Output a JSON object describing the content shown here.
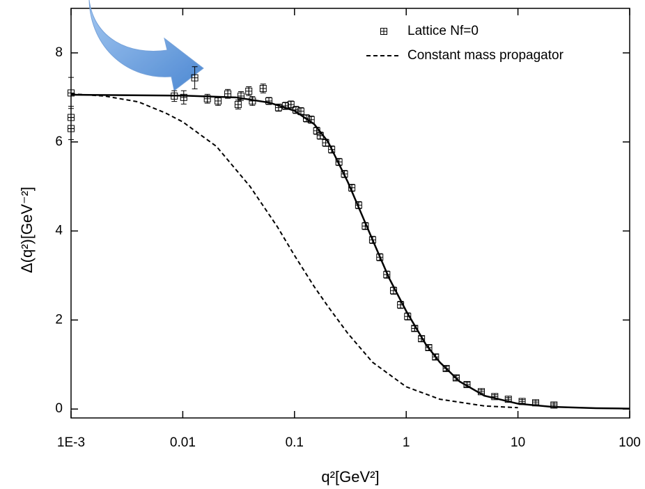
{
  "chart_data": {
    "type": "scatter",
    "x_label": "q²[GeV²]",
    "y_label": "Δ(q²)[GeV⁻²]",
    "x_scale": "log",
    "xlim": [
      0.001,
      100
    ],
    "xticks": [
      {
        "value": 0.001,
        "label": "1E-3"
      },
      0.01,
      0.1,
      1,
      10,
      100
    ],
    "ylim": [
      -0.2,
      9
    ],
    "yticks": [
      0,
      2,
      4,
      6,
      8
    ],
    "legend": "top-right",
    "series": [
      {
        "name": "Lattice Nf=0",
        "color": "#000000",
        "style": "markers",
        "x": [
          0.001,
          0.001,
          0.001,
          0.0084,
          0.0102,
          0.0128,
          0.0166,
          0.0207,
          0.0253,
          0.0313,
          0.0332,
          0.039,
          0.042,
          0.0524,
          0.059,
          0.072,
          0.083,
          0.093,
          0.103,
          0.114,
          0.128,
          0.141,
          0.158,
          0.17,
          0.19,
          0.215,
          0.25,
          0.28,
          0.326,
          0.375,
          0.43,
          0.5,
          0.58,
          0.67,
          0.77,
          0.89,
          1.03,
          1.19,
          1.37,
          1.59,
          1.83,
          2.28,
          2.8,
          3.5,
          4.7,
          6.2,
          8.2,
          10.9,
          14.4,
          21
        ],
        "values": [
          7.1,
          6.55,
          6.3,
          7.03,
          7.0,
          7.44,
          6.97,
          6.92,
          7.08,
          6.84,
          7.03,
          7.14,
          6.92,
          7.2,
          6.92,
          6.77,
          6.81,
          6.84,
          6.72,
          6.69,
          6.53,
          6.5,
          6.25,
          6.14,
          5.98,
          5.83,
          5.55,
          5.28,
          4.97,
          4.58,
          4.11,
          3.8,
          3.41,
          3.02,
          2.66,
          2.34,
          2.08,
          1.81,
          1.58,
          1.38,
          1.17,
          0.91,
          0.7,
          0.55,
          0.39,
          0.28,
          0.22,
          0.17,
          0.14,
          0.09
        ],
        "errors": [
          0.35,
          0.25,
          0.25,
          0.12,
          0.15,
          0.25,
          0.1,
          0.1,
          0.1,
          0.1,
          0.1,
          0.1,
          0.1,
          0.1,
          0.08,
          0.08,
          0.08,
          0.08,
          0.08,
          0.08,
          0.08,
          0.08,
          0.08,
          0.08,
          0.08,
          0.08,
          0.08,
          0.08,
          0.08,
          0.08,
          0.08,
          0.08,
          0.08,
          0.08,
          0.08,
          0.08,
          0.08,
          0.06,
          0.06,
          0.06,
          0.06,
          0.05,
          0.05,
          0.05,
          0.04,
          0.04,
          0.04,
          0.04,
          0.04,
          0.04
        ]
      },
      {
        "color": "#000000",
        "style": "solid",
        "x": [
          0.001,
          0.01,
          0.03,
          0.06,
          0.1,
          0.15,
          0.2,
          0.3,
          0.5,
          0.7,
          1,
          1.5,
          2,
          3,
          5,
          10,
          20,
          50,
          100
        ],
        "values": [
          7.06,
          7.04,
          7.0,
          6.88,
          6.7,
          6.4,
          6.0,
          5.1,
          3.8,
          2.95,
          2.2,
          1.45,
          1.05,
          0.62,
          0.3,
          0.12,
          0.05,
          0.02,
          0.01
        ]
      },
      {
        "name": "Constant mass propagator",
        "color": "#000000",
        "style": "dashed",
        "x": [
          0.001,
          0.002,
          0.004,
          0.007,
          0.01,
          0.02,
          0.04,
          0.07,
          0.1,
          0.15,
          0.2,
          0.3,
          0.5,
          1,
          2,
          5,
          10
        ],
        "values": [
          7.08,
          7.03,
          6.9,
          6.65,
          6.45,
          5.9,
          5.0,
          4.1,
          3.45,
          2.75,
          2.3,
          1.7,
          1.05,
          0.5,
          0.22,
          0.07,
          0.03
        ]
      }
    ]
  }
}
